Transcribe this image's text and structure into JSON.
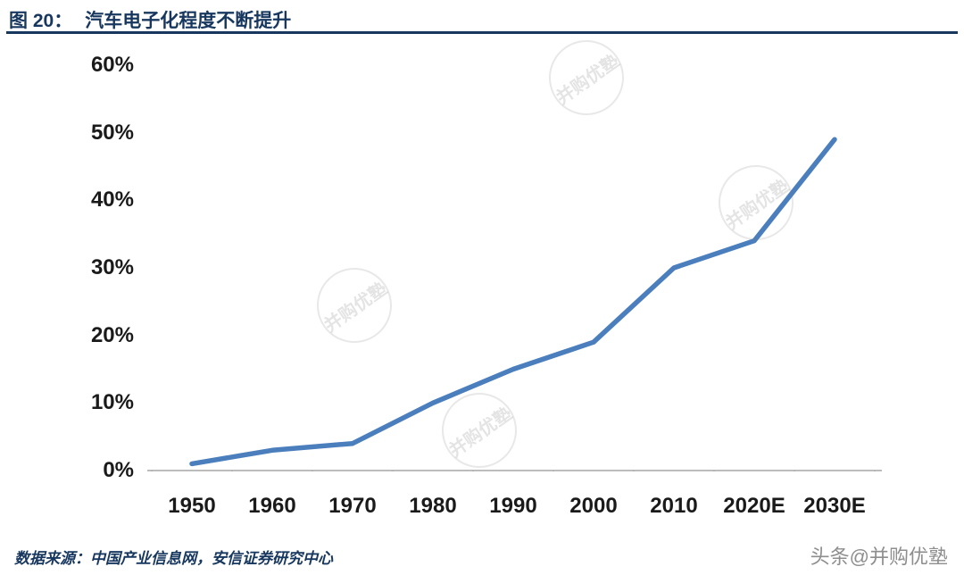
{
  "figure": {
    "label": "图 20：",
    "title": "汽车电子化程度不断提升"
  },
  "source": "数据来源：中国产业信息网，安信证券研究中心",
  "watermark": {
    "bottom_right": "头条@并购优塾",
    "diagonal": "并购优塾"
  },
  "colors": {
    "title_navy": "#17375E",
    "line_blue": "#4A7EBD",
    "axis_gray": "#A6A6A6",
    "label_dark": "#1A1A1A",
    "watermark_gray": "#8E8E8E"
  },
  "chart_data": {
    "type": "line",
    "title": "汽车电子化程度不断提升",
    "categories": [
      "1950",
      "1960",
      "1970",
      "1980",
      "1990",
      "2000",
      "2010",
      "2020E",
      "2030E"
    ],
    "values": [
      1,
      3,
      4,
      10,
      15,
      19,
      30,
      34,
      49
    ],
    "xlabel": "",
    "ylabel": "",
    "ylim": [
      0,
      60
    ],
    "yticks": [
      0,
      10,
      20,
      30,
      40,
      50,
      60
    ],
    "ytick_labels": [
      "0%",
      "10%",
      "20%",
      "30%",
      "40%",
      "50%",
      "60%"
    ],
    "grid": false,
    "legend": "none"
  }
}
